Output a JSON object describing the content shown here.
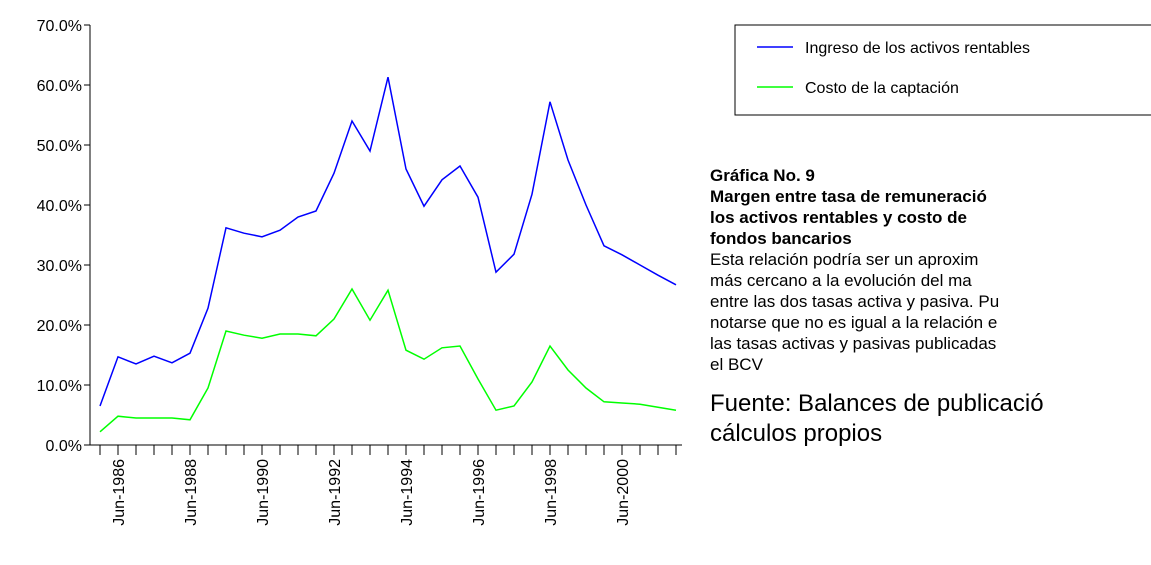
{
  "chart_data": {
    "type": "line",
    "categories": [
      null,
      "Jun-1986",
      null,
      null,
      null,
      "Jun-1988",
      null,
      null,
      null,
      "Jun-1990",
      null,
      null,
      null,
      "Jun-1992",
      null,
      null,
      null,
      "Jun-1994",
      null,
      null,
      null,
      "Jun-1996",
      null,
      null,
      null,
      "Jun-1998",
      null,
      null,
      null,
      "Jun-2000",
      null,
      null,
      null
    ],
    "series": [
      {
        "name": "Ingreso de los activos rentables",
        "color": "#0000ff",
        "values": [
          6.5,
          14.7,
          13.5,
          14.8,
          13.7,
          15.3,
          22.8,
          36.2,
          35.3,
          34.7,
          35.8,
          38.0,
          39.0,
          45.3,
          54.0,
          49.0,
          61.3,
          46.0,
          39.8,
          44.2,
          46.5,
          41.3,
          28.8,
          31.8,
          41.8,
          57.2,
          47.5,
          40.0,
          33.2,
          31.7,
          30.0,
          28.3,
          26.7
        ]
      },
      {
        "name": "Costo de la captación",
        "color": "#00ff00",
        "values": [
          2.2,
          4.8,
          4.5,
          4.5,
          4.5,
          4.2,
          9.5,
          19.0,
          18.3,
          17.8,
          18.5,
          18.5,
          18.2,
          21.0,
          26.0,
          20.8,
          25.8,
          15.8,
          14.3,
          16.2,
          16.5,
          11.0,
          5.8,
          6.5,
          10.5,
          16.5,
          12.5,
          9.5,
          7.2,
          7.0,
          6.8,
          6.3,
          5.8
        ]
      }
    ],
    "ylim": [
      0,
      70
    ],
    "yticks": [
      {
        "value": 0,
        "label": "0.0%"
      },
      {
        "value": 10,
        "label": "10.0%"
      },
      {
        "value": 20,
        "label": "20.0%"
      },
      {
        "value": 30,
        "label": "30.0%"
      },
      {
        "value": 40,
        "label": "40.0%"
      },
      {
        "value": 50,
        "label": "50.0%"
      },
      {
        "value": 60,
        "label": "60.0%"
      },
      {
        "value": 70,
        "label": "70.0%"
      }
    ],
    "grid": false,
    "legend": "upper right"
  },
  "panel": {
    "heading": "Gráfica No. 9",
    "title_lines": [
      "Margen entre tasa de remuneració",
      "los activos rentables y costo de",
      "fondos bancarios"
    ],
    "body_lines": [
      "Esta relación podría ser un aproxim",
      "más cercano a la evolución del ma",
      "entre las dos tasas activa y pasiva. Pu",
      "notarse que no es igual a la relación e",
      "las tasas activas y pasivas publicadas",
      "el BCV"
    ],
    "source_lines": [
      "Fuente: Balances de publicació",
      "cálculos propios"
    ]
  }
}
